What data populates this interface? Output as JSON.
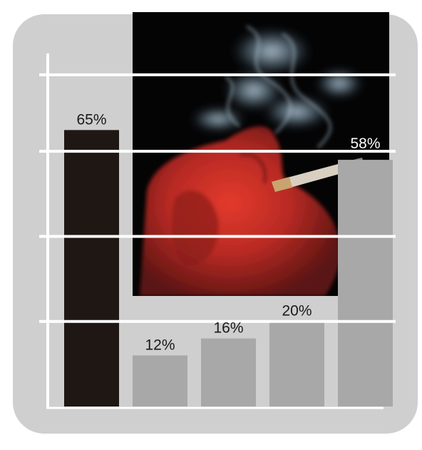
{
  "chart_data": {
    "type": "bar",
    "title": "",
    "xlabel": "",
    "ylabel": "",
    "ylim": [
      0,
      83
    ],
    "grid": true,
    "values": [
      65,
      12,
      16,
      20,
      58
    ],
    "labels": [
      "65%",
      "12%",
      "16%",
      "20%",
      "58%"
    ],
    "colors": [
      "#1e1714",
      "#a8a8a8",
      "#a8a8a8",
      "#a8a8a8",
      "#a8a8a8"
    ]
  }
}
